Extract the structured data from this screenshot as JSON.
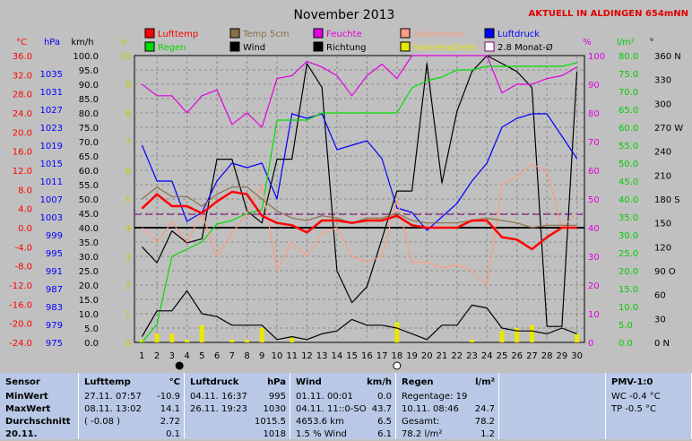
{
  "chart_data": {
    "type": "line",
    "title": "November 2013",
    "station_note": "AKTUELL IN ALDINGEN 654mNN",
    "x": [
      1,
      2,
      3,
      4,
      5,
      6,
      7,
      8,
      9,
      10,
      11,
      12,
      13,
      14,
      15,
      16,
      17,
      18,
      19,
      20,
      21,
      22,
      23,
      24,
      25,
      26,
      27,
      28,
      29,
      30
    ],
    "xlim": [
      0.5,
      30.5
    ],
    "grid": true,
    "axis_headers": {
      "temp": "°C",
      "pressure": "hPa",
      "wind_speed": "km/h",
      "sunshine": "h",
      "humidity": "%",
      "rain": "l/m²",
      "direction": "°"
    },
    "axes": {
      "temp": [
        "36.0",
        "32.0",
        "28.0",
        "24.0",
        "20.0",
        "16.0",
        "12.0",
        "8.0",
        "4.0",
        "0.0",
        "-4.0",
        "-8.0",
        "-12.0",
        "-16.0",
        "-20.0",
        "-24.0"
      ],
      "pressure": [
        "",
        "1035",
        "1031",
        "1027",
        "1023",
        "1019",
        "1015",
        "1011",
        "1007",
        "1003",
        "999",
        "995",
        "991",
        "987",
        "983",
        "979",
        "975"
      ],
      "wind": [
        "100.0",
        "95.0",
        "90.0",
        "85.0",
        "80.0",
        "75.0",
        "70.0",
        "65.0",
        "60.0",
        "55.0",
        "50.0",
        "45.0",
        "40.0",
        "35.0",
        "30.0",
        "25.0",
        "20.0",
        "15.0",
        "10.0",
        "5.0",
        "0.0"
      ],
      "sunshine": [
        "10",
        "",
        "9",
        "",
        "8",
        "",
        "7",
        "",
        "6",
        "",
        "5",
        "",
        "4",
        "",
        "3",
        "",
        "2",
        "",
        "1",
        "",
        "0"
      ],
      "humidity": [
        "100",
        "",
        "90",
        "",
        "80",
        "",
        "70",
        "",
        "60",
        "",
        "50",
        "",
        "40",
        "",
        "30",
        "",
        "20",
        "",
        "10",
        "",
        "0"
      ],
      "rain": [
        "80.0",
        "75.0",
        "70.0",
        "65.0",
        "60.0",
        "55.0",
        "50.0",
        "45.0",
        "40.0",
        "35.0",
        "30.0",
        "25.0",
        "20.0",
        "15.0",
        "10.0",
        "5.0",
        "0.0"
      ],
      "direction": [
        "360 N",
        "330",
        "300",
        "270 W",
        "240",
        "210",
        "180 S",
        "150",
        "120",
        "90 O",
        "60",
        "30",
        "0 N"
      ]
    },
    "legend": [
      {
        "name": "Lufttemp",
        "color": "#ff0000"
      },
      {
        "name": "Temp 5cm",
        "color": "#8b6f47"
      },
      {
        "name": "Feuchte",
        "color": "#e000e0"
      },
      {
        "name": "Solarsensor",
        "color": "#ff9c80"
      },
      {
        "name": "Luftdruck",
        "color": "#0000ff"
      },
      {
        "name": "Regen",
        "color": "#00dd00"
      },
      {
        "name": "Wind",
        "color": "#000000"
      },
      {
        "name": "Richtung",
        "color": "#000000"
      },
      {
        "name": "Sonnenschein",
        "color": "#e8e800"
      },
      {
        "name": "2.8 Monat-Ø",
        "color": "#800080"
      }
    ],
    "series": [
      {
        "name": "Richtung",
        "axis": "direction",
        "color": "#000000",
        "values": [
          120,
          100,
          140,
          125,
          130,
          230,
          230,
          165,
          150,
          230,
          230,
          350,
          320,
          90,
          50,
          70,
          130,
          190,
          190,
          350,
          200,
          290,
          340,
          360,
          350,
          340,
          320,
          20,
          20,
          340
        ]
      },
      {
        "name": "Luftdruck",
        "axis": "pressure",
        "color": "#0000ff",
        "values": [
          1019,
          1011,
          1011,
          1002,
          1004,
          1011,
          1015,
          1014,
          1015,
          1007,
          1026,
          1025,
          1026,
          1018,
          1019,
          1020,
          1016,
          1005,
          1004,
          1000,
          1003,
          1006,
          1011,
          1015,
          1023,
          1025,
          1026,
          1026,
          1021,
          1016
        ]
      },
      {
        "name": "Feuchte",
        "axis": "humidity",
        "color": "#e000e0",
        "values": [
          90,
          86,
          86,
          80,
          86,
          88,
          76,
          80,
          75,
          92,
          93,
          98,
          96,
          93,
          86,
          93,
          97,
          92,
          100,
          100,
          100,
          100,
          100,
          100,
          87,
          90,
          90,
          92,
          93,
          96
        ]
      },
      {
        "name": "Regen",
        "axis": "rain",
        "color": "#00dd00",
        "values": [
          0,
          5,
          24,
          26,
          28,
          33,
          34,
          36,
          37,
          62,
          62,
          62,
          64,
          64,
          64,
          64,
          64,
          64,
          71,
          73,
          74,
          76,
          76,
          77,
          77,
          77,
          77,
          77,
          77,
          78
        ]
      },
      {
        "name": "Solarsensor",
        "axis": "humidity",
        "color": "#ff9c80",
        "values": [
          40,
          35,
          42,
          35,
          45,
          30,
          38,
          45,
          55,
          25,
          35,
          30,
          38,
          40,
          30,
          28,
          30,
          50,
          28,
          28,
          26,
          27,
          25,
          20,
          55,
          58,
          62,
          60,
          40,
          45
        ]
      },
      {
        "name": "Temp 5cm",
        "axis": "temp",
        "color": "#8b6f47",
        "values": [
          6.0,
          8.5,
          6.5,
          6.5,
          4.5,
          7.0,
          8.5,
          8.5,
          6.0,
          3.5,
          2.0,
          1.5,
          2.5,
          2.0,
          1.0,
          2.0,
          2.0,
          3.0,
          1.5,
          1.0,
          1.0,
          1.0,
          1.5,
          2.0,
          1.5,
          1.0,
          0.0,
          0.5,
          0.5,
          0.5
        ]
      },
      {
        "name": "Lufttemp",
        "axis": "temp",
        "color": "#ff0000",
        "values": [
          4.0,
          7.0,
          4.5,
          4.5,
          3.0,
          5.5,
          7.5,
          7.0,
          2.5,
          1.0,
          0.5,
          -1.0,
          1.5,
          1.5,
          1.0,
          1.5,
          1.5,
          2.5,
          0.5,
          0.0,
          0.0,
          0.0,
          1.5,
          1.5,
          -2.0,
          -2.5,
          -4.5,
          -2.0,
          0.0,
          0.0
        ]
      },
      {
        "name": "Wind",
        "axis": "wind",
        "color": "#000000",
        "values": [
          2,
          11,
          11,
          18,
          10,
          9,
          6,
          6,
          6,
          1,
          2,
          1,
          3,
          4,
          8,
          6,
          6,
          5,
          3,
          1,
          6,
          6,
          13,
          12,
          5,
          4,
          4,
          3,
          5,
          3
        ]
      },
      {
        "name": "Sonnenschein",
        "axis": "sunshine",
        "color": "#e8e800",
        "type": "bar",
        "values": [
          0.1,
          0.3,
          0.3,
          0.1,
          0.6,
          0,
          0.1,
          0.1,
          0.5,
          0,
          0.2,
          0,
          0,
          0,
          0,
          0,
          0,
          0.7,
          0,
          0,
          0,
          0,
          0.1,
          0,
          0.4,
          0.5,
          0.6,
          0,
          0,
          0.3
        ]
      }
    ],
    "reference_lines": [
      {
        "name": "2.8 Monat-Ø",
        "axis": "temp",
        "value": 2.8,
        "color": "#800080",
        "dash": true
      },
      {
        "name": "0 °C",
        "axis": "temp",
        "value": 0,
        "color": "#000000"
      }
    ],
    "x_markers": [
      {
        "x": 3.5,
        "shape": "filled-circle"
      },
      {
        "x": 18,
        "shape": "open-circle"
      }
    ]
  },
  "stats": {
    "sections": [
      {
        "header": "Sensor",
        "rows": [
          "MinWert",
          "MaxWert",
          "Durchschnitt",
          "20.11."
        ]
      },
      {
        "header": "Lufttemp",
        "unit": "°C",
        "rows": [
          {
            "left": "27.11.  07:57",
            "right": "-10.9"
          },
          {
            "left": "08.11.  13:02",
            "right": "14.1"
          },
          {
            "left": "( -0.08 )",
            "right": "2.72"
          },
          {
            "left": "",
            "right": "0.1"
          }
        ]
      },
      {
        "header": "Luftdruck",
        "unit": "hPa",
        "rows": [
          {
            "left": "04.11.  16:37",
            "right": "995"
          },
          {
            "left": "26.11.  19:23",
            "right": "1030"
          },
          {
            "left": "",
            "right": "1015.5"
          },
          {
            "left": "",
            "right": "1018"
          }
        ]
      },
      {
        "header": "Wind",
        "unit": "km/h",
        "rows": [
          {
            "left": "01.11.  00:01",
            "right": "0.0"
          },
          {
            "left": "04.11.  11::0-SO",
            "right": "43.7"
          },
          {
            "left": "4653.6 km",
            "right": "6.5"
          },
          {
            "left": "1.5 % Wind",
            "right": "6.1"
          }
        ]
      },
      {
        "header": "Regen",
        "unit": "l/m²",
        "rows": [
          {
            "left": "Regentage: 19",
            "right": ""
          },
          {
            "left": "10.11.  08:46",
            "right": "24.7"
          },
          {
            "left": "Gesamt:",
            "right": "78.2"
          },
          {
            "left": "78.2 l/m²",
            "right": "1.2"
          }
        ]
      },
      {
        "header": "PMV-1:0",
        "rows": [
          "WC -0.4 °C",
          "TP -0.5 °C"
        ]
      }
    ]
  }
}
